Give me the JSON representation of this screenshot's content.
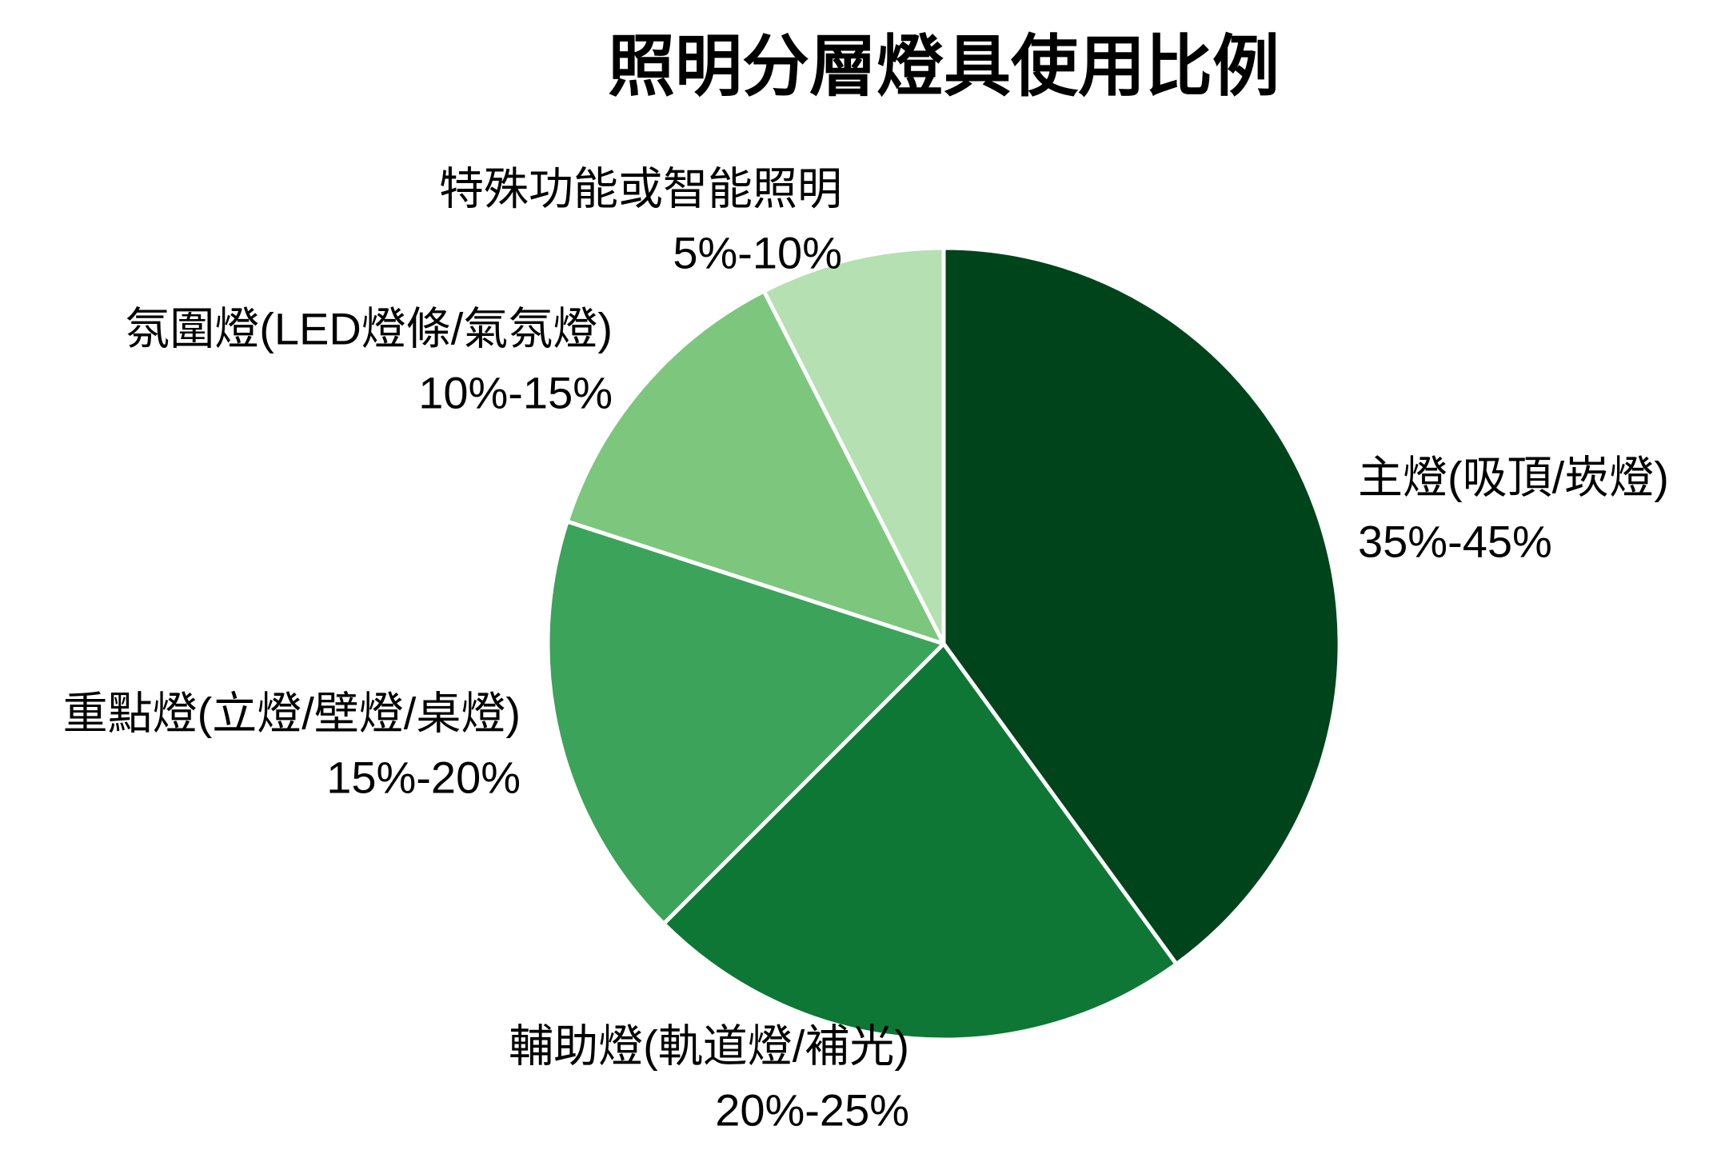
{
  "chart_data": {
    "type": "pie",
    "title": "照明分層燈具使用比例",
    "start_angle_deg": 0,
    "direction": "clockwise",
    "legend": "none",
    "slices": [
      {
        "label": "主燈(吸頂/崁燈)",
        "range": "35%-45%",
        "value": 40,
        "color": "#00441b"
      },
      {
        "label": "輔助燈(軌道燈/補光)",
        "range": "20%-25%",
        "value": 22.5,
        "color": "#0e7735"
      },
      {
        "label": "重點燈(立燈/壁燈/桌燈)",
        "range": "15%-20%",
        "value": 17.5,
        "color": "#3ca35a"
      },
      {
        "label": "氛圍燈(LED燈條/氣氛燈)",
        "range": "10%-15%",
        "value": 12.5,
        "color": "#7cc67e"
      },
      {
        "label": "特殊功能或智能照明",
        "range": "5%-10%",
        "value": 7.5,
        "color": "#b5e0b2"
      }
    ],
    "separator_color": "#ffffff"
  }
}
